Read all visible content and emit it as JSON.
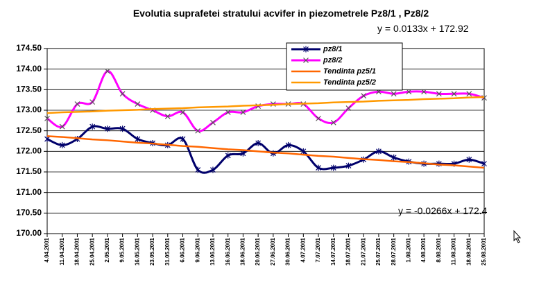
{
  "chart_data": {
    "type": "line",
    "title": "Evolutia  suprafetei stratului acvifer in piezometrele Pz8/1 , Pz8/2",
    "annotations": [
      "y = 0.0133x + 172.92",
      "y = -0.0266x + 172.4"
    ],
    "categories": [
      "4.04.2001",
      "11.04.2001",
      "18.04.2001",
      "25.04.2001",
      "2.05.2001",
      "9.05.2001",
      "16.05.2001",
      "23.05.2001",
      "31.05.2001",
      "6.06.2001",
      "9.06.2001",
      "13.06.2001",
      "16.06.2001",
      "18.06.2001",
      "20.06.2001",
      "27.06.2001",
      "30.06.2001",
      "4.07.2001",
      "7.07.2001",
      "14.07.2001",
      "18.07.2001",
      "21.07.2001",
      "25.07.2001",
      "28.07.2001",
      "1.08.2001",
      "4.08.2001",
      "8.08.2001",
      "11.08.2001",
      "18.08.2001",
      "25.08.2001"
    ],
    "series": [
      {
        "name": "pz8/1",
        "color": "#00006b",
        "marker": "star",
        "smooth": true,
        "values": [
          172.3,
          172.15,
          172.3,
          172.6,
          172.55,
          172.55,
          172.3,
          172.2,
          172.15,
          172.3,
          171.55,
          171.55,
          171.9,
          171.95,
          172.2,
          171.95,
          172.15,
          172.0,
          171.6,
          171.6,
          171.65,
          171.8,
          172.0,
          171.85,
          171.75,
          171.7,
          171.7,
          171.7,
          171.8,
          171.7
        ]
      },
      {
        "name": "pz8/2",
        "color": "#ff00ff",
        "marker": "x",
        "smooth": true,
        "values": [
          172.8,
          172.6,
          173.15,
          173.2,
          173.95,
          173.4,
          173.15,
          173.0,
          172.85,
          172.95,
          172.5,
          172.7,
          172.95,
          172.95,
          173.1,
          173.15,
          173.15,
          173.15,
          172.8,
          172.7,
          173.05,
          173.35,
          173.45,
          173.4,
          173.45,
          173.45,
          173.4,
          173.4,
          173.4,
          173.3
        ]
      },
      {
        "name": "Tendinta pz5/1",
        "color": "#ff6600",
        "marker": "none",
        "smooth": false,
        "values": [
          172.37,
          172.35,
          172.32,
          172.29,
          172.27,
          172.24,
          172.21,
          172.19,
          172.16,
          172.13,
          172.11,
          172.08,
          172.05,
          172.03,
          172.0,
          171.97,
          171.95,
          171.92,
          171.89,
          171.87,
          171.84,
          171.81,
          171.79,
          171.76,
          171.74,
          171.71,
          171.68,
          171.66,
          171.63,
          171.6
        ]
      },
      {
        "name": "Tendinta pz5/2",
        "color": "#ff9900",
        "marker": "none",
        "smooth": false,
        "values": [
          172.93,
          172.95,
          172.96,
          172.97,
          172.99,
          173.0,
          173.01,
          173.03,
          173.04,
          173.05,
          173.07,
          173.08,
          173.09,
          173.11,
          173.12,
          173.13,
          173.15,
          173.16,
          173.17,
          173.19,
          173.2,
          173.21,
          173.23,
          173.24,
          173.25,
          173.27,
          173.28,
          173.29,
          173.31,
          173.32
        ]
      }
    ],
    "ylim": [
      170,
      174.5
    ],
    "yticks": [
      {
        "value": 170,
        "label": "170.00"
      },
      {
        "value": 170.5,
        "label": "170.50"
      },
      {
        "value": 171,
        "label": "171.00"
      },
      {
        "value": 171.5,
        "label": "171.50"
      },
      {
        "value": 172,
        "label": "172.00"
      },
      {
        "value": 172.5,
        "label": "172.50"
      },
      {
        "value": 173,
        "label": "173.00"
      },
      {
        "value": 173.5,
        "label": "173.50"
      },
      {
        "value": 174,
        "label": "174.00"
      },
      {
        "value": 174.5,
        "label": "174.50"
      }
    ],
    "grid": true
  }
}
